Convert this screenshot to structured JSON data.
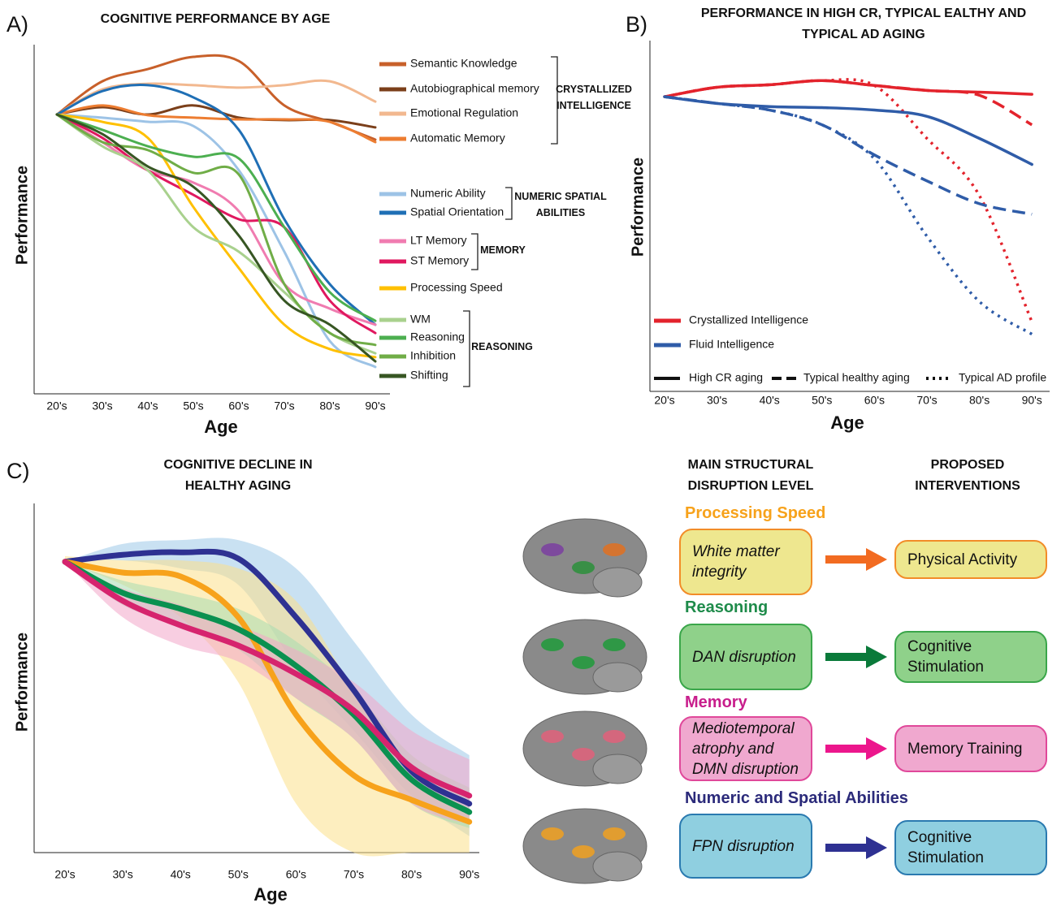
{
  "chart_data": [
    {
      "type": "line",
      "panel": "A)",
      "title": "COGNITIVE PERFORMANCE BY AGE",
      "x_label": "Age",
      "y_label": "Performance",
      "categories": [
        "20's",
        "30's",
        "40's",
        "50's",
        "60's",
        "70's",
        "80's",
        "90's"
      ],
      "ylim": [
        0,
        100
      ],
      "series": [
        {
          "name": "Semantic Knowledge",
          "color": "#c8602a",
          "values": [
            80.0,
            89.5,
            93.0,
            96.5,
            95.3,
            82.6,
            77.9,
            72.8
          ]
        },
        {
          "name": "Autobiographical memory",
          "color": "#7b3f1a",
          "values": [
            80.0,
            82.1,
            80.0,
            82.6,
            79.1,
            78.4,
            78.4,
            76.3
          ]
        },
        {
          "name": "Emotional Regulation",
          "color": "#f2b88f",
          "values": [
            80.0,
            87.2,
            88.8,
            88.4,
            87.7,
            88.4,
            89.5,
            83.7
          ]
        },
        {
          "name": "Automatic Memory",
          "color": "#ed7d31",
          "values": [
            80.0,
            82.6,
            79.8,
            79.1,
            78.6,
            78.6,
            77.9,
            72.1
          ]
        },
        {
          "name": "Numeric Ability",
          "color": "#9dc3e6",
          "values": [
            80.0,
            79.1,
            77.9,
            76.7,
            64.0,
            40.7,
            15.1,
            7.7
          ]
        },
        {
          "name": "Spatial Orientation",
          "color": "#1f6fb5",
          "values": [
            80.0,
            86.7,
            88.4,
            84.9,
            75.6,
            50.0,
            31.4,
            19.8
          ]
        },
        {
          "name": "LT Memory",
          "color": "#f07cb0",
          "values": [
            80.0,
            72.1,
            64.0,
            60.5,
            52.3,
            31.4,
            24.4,
            19.8
          ]
        },
        {
          "name": "ST Memory",
          "color": "#e0185f",
          "values": [
            80.0,
            73.3,
            64.0,
            57.0,
            50.0,
            47.7,
            26.7,
            17.4
          ]
        },
        {
          "name": "Processing Speed",
          "color": "#ffc000",
          "values": [
            80.0,
            77.9,
            73.3,
            53.5,
            36.0,
            19.8,
            12.8,
            10.5
          ]
        },
        {
          "name": "WM",
          "color": "#a9d18e",
          "values": [
            80.0,
            70.9,
            64.0,
            47.7,
            40.7,
            29.1,
            17.4,
            11.6
          ]
        },
        {
          "name": "Reasoning",
          "color": "#4caf50",
          "values": [
            80.0,
            75.6,
            70.9,
            67.9,
            67.4,
            47.7,
            29.1,
            20.9
          ]
        },
        {
          "name": "Inhibition",
          "color": "#70ad47",
          "values": [
            80.0,
            72.1,
            69.8,
            63.3,
            62.8,
            31.4,
            17.4,
            14.0
          ]
        },
        {
          "name": "Shifting",
          "color": "#375623",
          "values": [
            80.0,
            74.4,
            65.1,
            59.3,
            45.3,
            26.7,
            19.8,
            9.3
          ]
        }
      ],
      "legend_groups": [
        "CRYSTALLIZED INTELLIGENCE",
        "NUMERIC SPATIAL ABILITIES",
        "MEMORY",
        "REASONING"
      ]
    },
    {
      "type": "line",
      "panel": "B)",
      "title": "PERFORMANCE IN HIGH CR, TYPICAL EALTHY AND TYPICAL AD AGING",
      "x_label": "Age",
      "y_label": "Performance",
      "categories": [
        "20's",
        "30's",
        "40's",
        "50's",
        "60's",
        "70's",
        "80's",
        "90's"
      ],
      "ylim": [
        0,
        100
      ],
      "profiles": [
        {
          "name": "High CR aging",
          "dash": "solid"
        },
        {
          "name": "Typical healthy aging",
          "dash": "dashed"
        },
        {
          "name": "Typical AD profile",
          "dash": "dotted"
        }
      ],
      "series": [
        {
          "name": "Crystallized Intelligence",
          "color": "#e3232c",
          "profiles": [
            [
              84.0,
              86.7,
              87.4,
              88.6,
              87.2,
              85.8,
              85.3,
              84.7
            ],
            [
              84.0,
              86.7,
              87.4,
              88.6,
              87.2,
              85.8,
              84.4,
              76.0
            ],
            [
              84.0,
              86.7,
              87.4,
              88.6,
              87.2,
              72.1,
              55.8,
              19.8
            ]
          ]
        },
        {
          "name": "Fluid Intelligence",
          "color": "#2f5ca8",
          "profiles": [
            [
              84.0,
              82.1,
              81.2,
              80.9,
              80.2,
              78.4,
              72.1,
              64.7
            ],
            [
              84.0,
              82.1,
              80.2,
              76.0,
              67.4,
              60.0,
              53.5,
              50.5
            ],
            [
              84.0,
              82.1,
              80.2,
              76.0,
              66.3,
              44.2,
              25.6,
              16.3
            ]
          ]
        }
      ]
    },
    {
      "type": "band",
      "panel": "C)",
      "title": "COGNITIVE DECLINE IN HEALTHY AGING",
      "x_label": "Age",
      "y_label": "Performance",
      "categories": [
        "20's",
        "30's",
        "40's",
        "50's",
        "60's",
        "70's",
        "80's",
        "90's"
      ],
      "ylim": [
        0,
        100
      ],
      "series": [
        {
          "color": "#2e3192",
          "band_color": "#9cc8e8",
          "values": [
            83.3,
            85.3,
            86.0,
            84.2,
            67.4,
            46.5,
            23.3,
            14.0
          ],
          "band_low": [
            83.3,
            83.7,
            81.4,
            76.7,
            53.5,
            34.9,
            16.3,
            4.7
          ],
          "band_high": [
            83.3,
            88.4,
            89.5,
            89.5,
            81.4,
            60.5,
            39.5,
            27.9
          ]
        },
        {
          "color": "#f7a21b",
          "band_color": "#fbe08a",
          "values": [
            83.3,
            80.2,
            79.1,
            67.4,
            39.5,
            22.1,
            15.1,
            8.8
          ],
          "band_low": [
            83.3,
            76.7,
            67.4,
            48.8,
            14.0,
            0,
            0,
            0
          ],
          "band_high": [
            84.9,
            83.7,
            83.7,
            81.4,
            72.1,
            46.5,
            20.9,
            11.6
          ]
        },
        {
          "color": "#0a9150",
          "band_color": "#a8dcb0",
          "values": [
            83.3,
            74.4,
            69.8,
            64.0,
            53.5,
            39.5,
            20.9,
            11.6
          ],
          "band_low": [
            83.3,
            70.9,
            65.1,
            58.1,
            44.2,
            32.6,
            14.0,
            7.0
          ],
          "band_high": [
            83.3,
            77.9,
            74.4,
            69.8,
            60.5,
            46.5,
            27.9,
            18.6
          ]
        },
        {
          "color": "#d6246e",
          "band_color": "#f3a6c8",
          "values": [
            83.3,
            72.1,
            65.1,
            59.3,
            51.2,
            40.7,
            24.4,
            16.3
          ],
          "band_low": [
            83.3,
            67.4,
            59.3,
            54.7,
            44.2,
            32.6,
            14.0,
            8.1
          ],
          "band_high": [
            83.3,
            75.6,
            70.9,
            65.1,
            58.1,
            48.8,
            34.9,
            26.7
          ]
        }
      ]
    }
  ],
  "structural": {
    "headers": [
      "MAIN STRUCTURAL DISRUPTION LEVEL",
      "PROPOSED INTERVENTIONS"
    ],
    "rows": [
      {
        "heading": "Processing Speed",
        "disruption": "White matter integrity",
        "intervention": "Physical Activity",
        "color": "#f7a21b",
        "fill": "#eee78f",
        "border": "#f28c28",
        "arrow": "#f26b21"
      },
      {
        "heading": "Reasoning",
        "disruption": "DAN disruption",
        "intervention": "Cognitive Stimulation",
        "color": "#1e8b4a",
        "fill": "#8fd18a",
        "border": "#3aa64a",
        "arrow": "#0a7a3a"
      },
      {
        "heading": "Memory",
        "disruption": "Mediotemporal atrophy and DMN disruption",
        "intervention": "Memory Training",
        "color": "#c81e8c",
        "fill": "#f0a8cf",
        "border": "#e0489a",
        "arrow": "#ec168c"
      },
      {
        "heading": "Numeric and Spatial Abilities",
        "disruption": "FPN disruption",
        "intervention": "Cognitive Stimulation",
        "color": "#2b2a7a",
        "fill": "#8fcfe0",
        "border": "#2a7ab0",
        "arrow": "#2e3192"
      }
    ]
  }
}
